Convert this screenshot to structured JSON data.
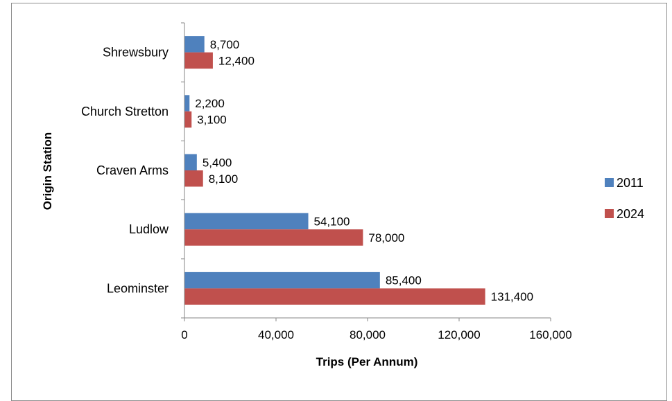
{
  "chart_data": {
    "type": "bar",
    "orientation": "horizontal",
    "title": "",
    "xlabel": "Trips (Per Annum)",
    "ylabel": "Origin Station",
    "categories": [
      "Shrewsbury",
      "Church Stretton",
      "Craven Arms",
      "Ludlow",
      "Leominster"
    ],
    "series": [
      {
        "name": "2011",
        "color": "#4f81bd",
        "values": [
          8700,
          2200,
          5400,
          54100,
          85400
        ],
        "labels": [
          "8,700",
          "2,200",
          "5,400",
          "54,100",
          "85,400"
        ]
      },
      {
        "name": "2024",
        "color": "#c0504d",
        "values": [
          12400,
          3100,
          8100,
          78000,
          131400
        ],
        "labels": [
          "12,400",
          "3,100",
          "8,100",
          "78,000",
          "131,400"
        ]
      }
    ],
    "xlim": [
      0,
      160000
    ],
    "xticks": [
      0,
      40000,
      80000,
      120000,
      160000
    ],
    "xtick_labels": [
      "0",
      "40,000",
      "80,000",
      "120,000",
      "160,000"
    ],
    "grid": false,
    "legend_position": "right"
  }
}
